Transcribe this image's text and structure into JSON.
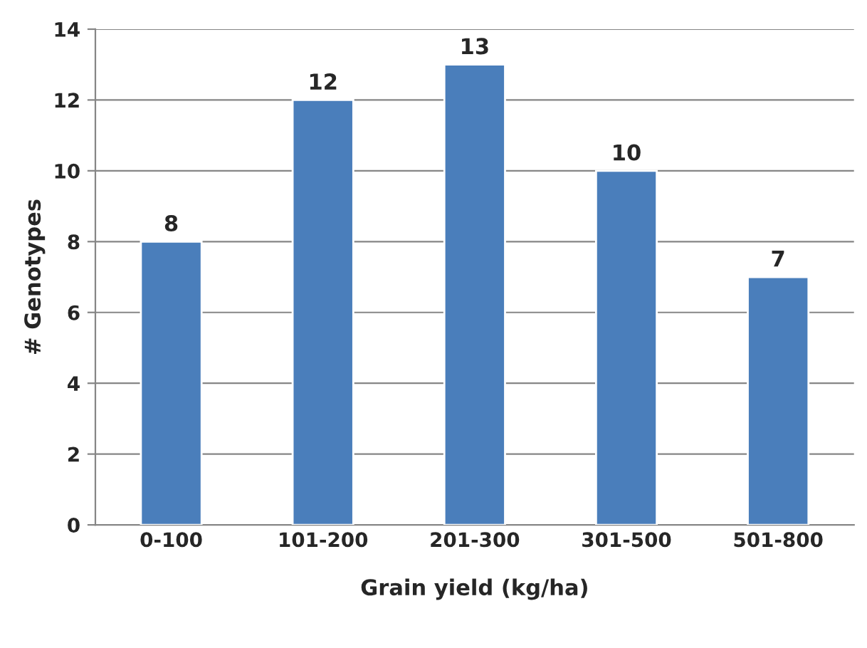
{
  "chart_data": {
    "type": "bar",
    "xlabel": "Grain yield (kg/ha)",
    "ylabel": "# Genotypes",
    "categories": [
      "0-100",
      "101-200",
      "201-300",
      "301-500",
      "501-800"
    ],
    "values": [
      8,
      12,
      13,
      10,
      7
    ],
    "color": "#4a7ebb",
    "ylim": [
      0,
      14
    ],
    "yticks": [
      0,
      2,
      4,
      6,
      8,
      10,
      12,
      14
    ],
    "grid": "y",
    "data_labels": true
  }
}
